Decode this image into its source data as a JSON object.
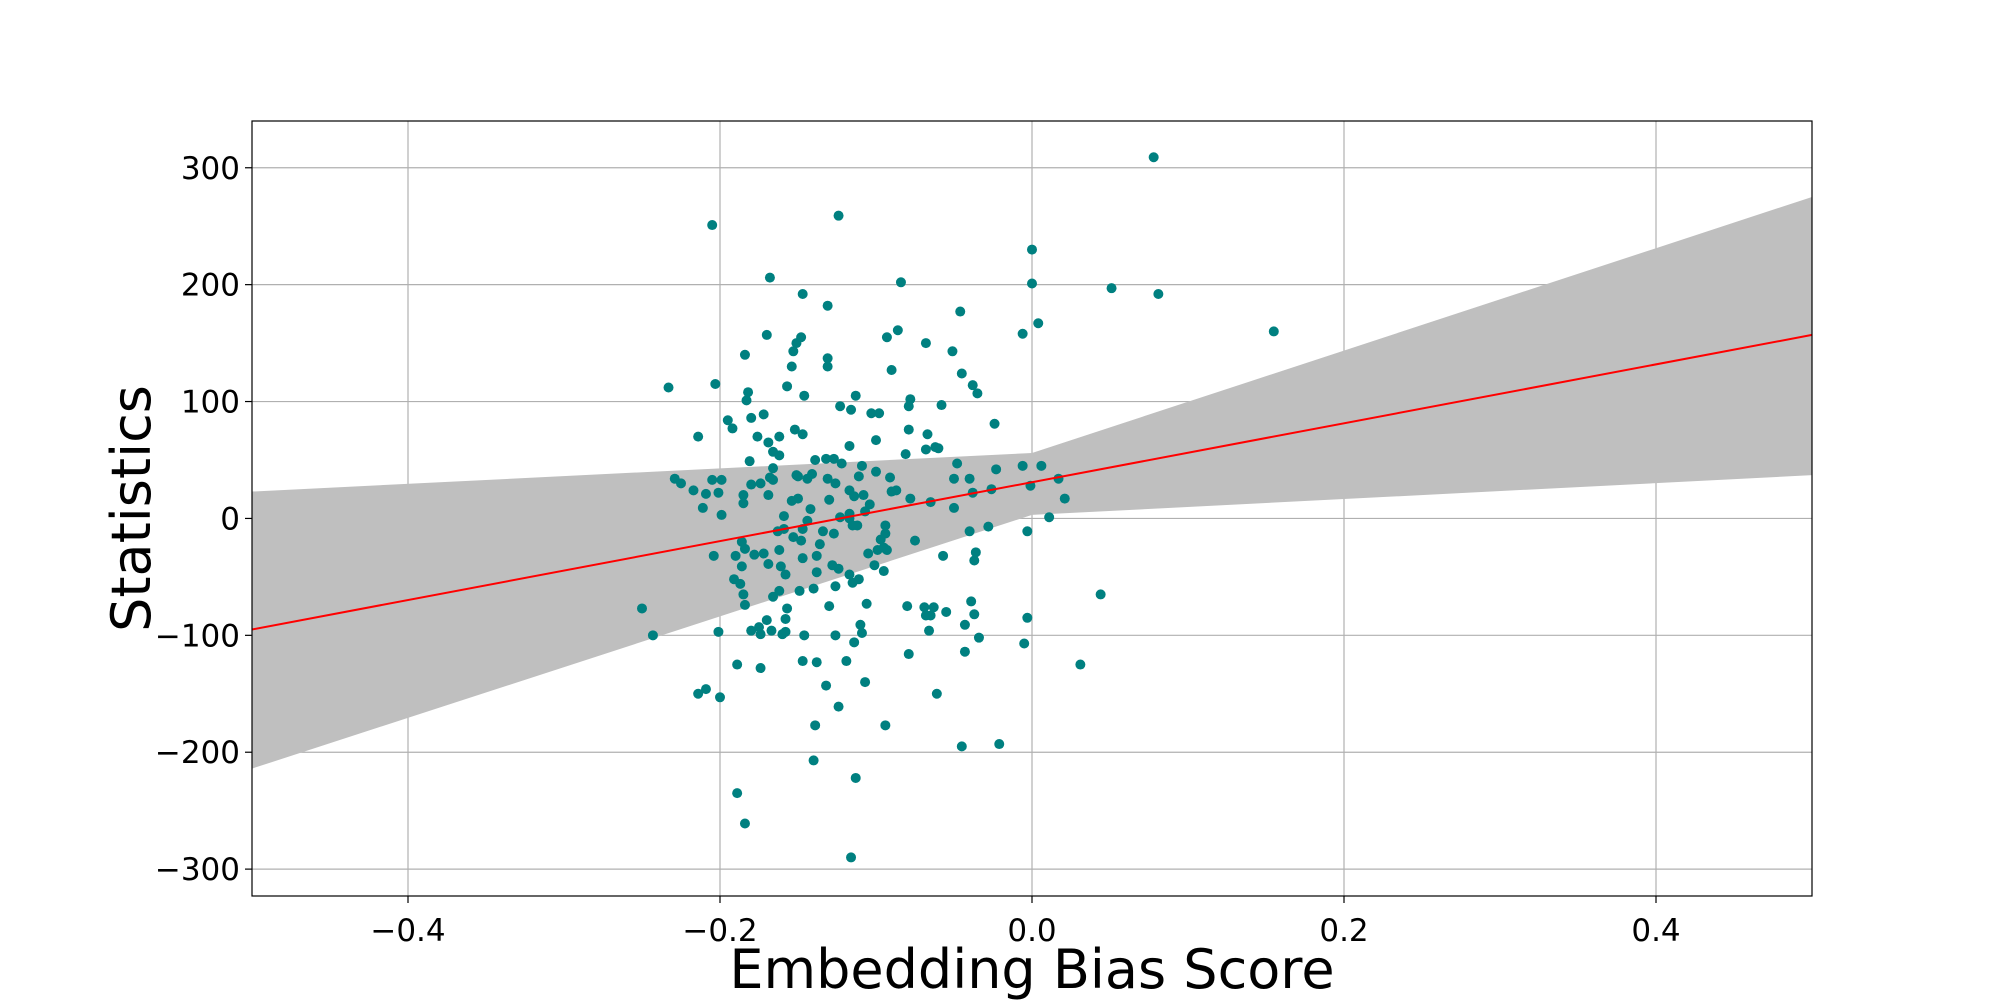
{
  "chart_data": {
    "type": "scatter",
    "title": "",
    "xlabel": "Embedding Bias Score",
    "ylabel": "Statistics",
    "xlim": [
      -0.5,
      0.5
    ],
    "ylim": [
      -323,
      340
    ],
    "grid": true,
    "xticks": [
      -0.4,
      -0.2,
      0.0,
      0.2,
      0.4
    ],
    "xtick_labels": [
      "−0.4",
      "−0.2",
      "0.0",
      "0.2",
      "0.4"
    ],
    "yticks": [
      -300,
      -200,
      -100,
      0,
      100,
      200,
      300
    ],
    "ytick_labels": [
      "−300",
      "−200",
      "−100",
      "0",
      "100",
      "200",
      "300"
    ],
    "colors": {
      "points": "#008080",
      "regression": "#ff0000",
      "confidence_band": "#bfbfbf",
      "grid": "#b0b0b0"
    },
    "regression": {
      "x": [
        -0.5,
        0.5
      ],
      "y": [
        -95,
        157
      ]
    },
    "confidence_band": {
      "x": [
        -0.5,
        0.0,
        0.5
      ],
      "upper": [
        23,
        56,
        275
      ],
      "lower": [
        -214,
        3,
        37
      ]
    },
    "points": [
      [
        0.078,
        309
      ],
      [
        -0.124,
        259
      ],
      [
        -0.205,
        251
      ],
      [
        0.0,
        230
      ],
      [
        -0.168,
        206
      ],
      [
        0.051,
        197
      ],
      [
        -0.084,
        202
      ],
      [
        0.081,
        192
      ],
      [
        -0.147,
        192
      ],
      [
        0.0,
        201
      ],
      [
        -0.131,
        182
      ],
      [
        -0.046,
        177
      ],
      [
        0.004,
        167
      ],
      [
        0.155,
        160
      ],
      [
        -0.006,
        158
      ],
      [
        -0.086,
        161
      ],
      [
        -0.093,
        155
      ],
      [
        -0.068,
        150
      ],
      [
        -0.17,
        157
      ],
      [
        -0.148,
        155
      ],
      [
        -0.151,
        150
      ],
      [
        -0.153,
        143
      ],
      [
        -0.051,
        143
      ],
      [
        -0.184,
        140
      ],
      [
        -0.131,
        137
      ],
      [
        -0.09,
        127
      ],
      [
        -0.131,
        130
      ],
      [
        -0.154,
        130
      ],
      [
        -0.045,
        124
      ],
      [
        -0.038,
        114
      ],
      [
        -0.203,
        115
      ],
      [
        -0.233,
        112
      ],
      [
        -0.157,
        113
      ],
      [
        -0.035,
        107
      ],
      [
        -0.182,
        108
      ],
      [
        -0.146,
        105
      ],
      [
        -0.113,
        105
      ],
      [
        -0.183,
        101
      ],
      [
        -0.078,
        102
      ],
      [
        -0.058,
        97
      ],
      [
        -0.079,
        96
      ],
      [
        -0.123,
        96
      ],
      [
        -0.116,
        93
      ],
      [
        -0.098,
        90
      ],
      [
        -0.103,
        90
      ],
      [
        -0.172,
        89
      ],
      [
        -0.18,
        86
      ],
      [
        -0.195,
        84
      ],
      [
        -0.024,
        81
      ],
      [
        -0.192,
        77
      ],
      [
        -0.152,
        76
      ],
      [
        -0.079,
        76
      ],
      [
        -0.147,
        72
      ],
      [
        -0.067,
        72
      ],
      [
        -0.176,
        70
      ],
      [
        -0.214,
        70
      ],
      [
        -0.162,
        70
      ],
      [
        -0.1,
        67
      ],
      [
        -0.169,
        65
      ],
      [
        -0.06,
        60
      ],
      [
        -0.068,
        59
      ],
      [
        -0.166,
        57
      ],
      [
        -0.117,
        62
      ],
      [
        -0.162,
        54
      ],
      [
        -0.081,
        55
      ],
      [
        -0.132,
        51
      ],
      [
        -0.127,
        51
      ],
      [
        -0.122,
        47
      ],
      [
        -0.139,
        50
      ],
      [
        -0.048,
        47
      ],
      [
        -0.181,
        49
      ],
      [
        -0.006,
        45
      ],
      [
        0.006,
        45
      ],
      [
        -0.109,
        45
      ],
      [
        -0.166,
        43
      ],
      [
        -0.1,
        40
      ],
      [
        -0.151,
        37
      ],
      [
        -0.15,
        36
      ],
      [
        -0.111,
        36
      ],
      [
        -0.023,
        42
      ],
      [
        -0.168,
        35
      ],
      [
        -0.131,
        34
      ],
      [
        -0.144,
        34
      ],
      [
        -0.229,
        34
      ],
      [
        -0.091,
        35
      ],
      [
        -0.04,
        34
      ],
      [
        -0.05,
        34
      ],
      [
        -0.166,
        33
      ],
      [
        -0.199,
        33
      ],
      [
        -0.205,
        33
      ],
      [
        0.017,
        34
      ],
      [
        -0.225,
        30
      ],
      [
        -0.18,
        29
      ],
      [
        -0.126,
        30
      ],
      [
        -0.174,
        30
      ],
      [
        -0.026,
        25
      ],
      [
        -0.001,
        28
      ],
      [
        -0.087,
        24
      ],
      [
        -0.217,
        24
      ],
      [
        -0.117,
        24
      ],
      [
        -0.201,
        22
      ],
      [
        -0.209,
        21
      ],
      [
        -0.185,
        20
      ],
      [
        -0.169,
        20
      ],
      [
        -0.108,
        20
      ],
      [
        -0.114,
        19
      ],
      [
        -0.15,
        17
      ],
      [
        -0.13,
        16
      ],
      [
        -0.154,
        15
      ],
      [
        -0.078,
        17
      ],
      [
        -0.038,
        22
      ],
      [
        -0.065,
        14
      ],
      [
        0.021,
        17
      ],
      [
        -0.185,
        13
      ],
      [
        -0.104,
        12
      ],
      [
        -0.211,
        9
      ],
      [
        -0.142,
        8
      ],
      [
        -0.05,
        9
      ],
      [
        -0.107,
        6
      ],
      [
        -0.117,
        4
      ],
      [
        -0.199,
        3
      ],
      [
        -0.159,
        2
      ],
      [
        -0.123,
        1
      ],
      [
        -0.117,
        0
      ],
      [
        0.011,
        1
      ],
      [
        -0.144,
        -2
      ],
      [
        -0.112,
        -6
      ],
      [
        -0.094,
        -6
      ],
      [
        -0.115,
        -6
      ],
      [
        -0.159,
        -9
      ],
      [
        -0.147,
        -9
      ],
      [
        -0.028,
        -7
      ],
      [
        -0.134,
        -11
      ],
      [
        -0.04,
        -11
      ],
      [
        -0.127,
        -13
      ],
      [
        -0.003,
        -11
      ],
      [
        -0.094,
        -13
      ],
      [
        -0.153,
        -16
      ],
      [
        -0.148,
        -19
      ],
      [
        -0.097,
        -18
      ],
      [
        -0.075,
        -19
      ],
      [
        -0.136,
        -22
      ],
      [
        -0.186,
        -20
      ],
      [
        -0.184,
        -26
      ],
      [
        -0.095,
        -25
      ],
      [
        -0.099,
        -27
      ],
      [
        -0.162,
        -27
      ],
      [
        -0.036,
        -29
      ],
      [
        -0.093,
        -27
      ],
      [
        -0.105,
        -30
      ],
      [
        -0.172,
        -30
      ],
      [
        -0.178,
        -31
      ],
      [
        -0.138,
        -32
      ],
      [
        -0.19,
        -32
      ],
      [
        -0.057,
        -32
      ],
      [
        -0.204,
        -32
      ],
      [
        -0.147,
        -34
      ],
      [
        -0.037,
        -36
      ],
      [
        -0.101,
        -40
      ],
      [
        -0.186,
        -41
      ],
      [
        -0.169,
        -39
      ],
      [
        -0.161,
        -41
      ],
      [
        -0.128,
        -40
      ],
      [
        -0.124,
        -43
      ],
      [
        -0.095,
        -45
      ],
      [
        -0.138,
        -46
      ],
      [
        -0.117,
        -48
      ],
      [
        -0.158,
        -48
      ],
      [
        -0.191,
        -52
      ],
      [
        -0.111,
        -52
      ],
      [
        -0.115,
        -55
      ],
      [
        -0.187,
        -56
      ],
      [
        -0.126,
        -58
      ],
      [
        -0.14,
        -60
      ],
      [
        -0.149,
        -62
      ],
      [
        -0.162,
        -62
      ],
      [
        -0.185,
        -65
      ],
      [
        -0.166,
        -67
      ],
      [
        0.044,
        -65
      ],
      [
        -0.039,
        -71
      ],
      [
        -0.106,
        -73
      ],
      [
        -0.08,
        -75
      ],
      [
        -0.184,
        -74
      ],
      [
        -0.069,
        -76
      ],
      [
        -0.25,
        -77
      ],
      [
        -0.157,
        -77
      ],
      [
        -0.13,
        -75
      ],
      [
        -0.063,
        -76
      ],
      [
        -0.055,
        -80
      ],
      [
        -0.037,
        -82
      ],
      [
        -0.068,
        -83
      ],
      [
        -0.065,
        -83
      ],
      [
        -0.003,
        -85
      ],
      [
        -0.158,
        -86
      ],
      [
        -0.17,
        -87
      ],
      [
        -0.11,
        -91
      ],
      [
        -0.043,
        -91
      ],
      [
        -0.175,
        -93
      ],
      [
        -0.18,
        -96
      ],
      [
        -0.066,
        -96
      ],
      [
        -0.167,
        -96
      ],
      [
        -0.201,
        -97
      ],
      [
        -0.158,
        -97
      ],
      [
        -0.109,
        -98
      ],
      [
        -0.126,
        -100
      ],
      [
        -0.146,
        -100
      ],
      [
        -0.16,
        -99
      ],
      [
        -0.174,
        -99
      ],
      [
        -0.243,
        -100
      ],
      [
        -0.034,
        -102
      ],
      [
        -0.114,
        -106
      ],
      [
        -0.005,
        -107
      ],
      [
        -0.043,
        -114
      ],
      [
        -0.079,
        -116
      ],
      [
        -0.147,
        -122
      ],
      [
        -0.119,
        -122
      ],
      [
        -0.138,
        -123
      ],
      [
        -0.189,
        -125
      ],
      [
        0.031,
        -125
      ],
      [
        -0.174,
        -128
      ],
      [
        -0.107,
        -140
      ],
      [
        -0.132,
        -143
      ],
      [
        -0.061,
        -150
      ],
      [
        -0.214,
        -150
      ],
      [
        -0.2,
        -153
      ],
      [
        -0.124,
        -161
      ],
      [
        -0.094,
        -177
      ],
      [
        -0.139,
        -177
      ],
      [
        -0.045,
        -195
      ],
      [
        -0.021,
        -193
      ],
      [
        -0.14,
        -207
      ],
      [
        -0.113,
        -222
      ],
      [
        -0.189,
        -235
      ],
      [
        -0.184,
        -261
      ],
      [
        -0.116,
        -290
      ],
      [
        -0.209,
        -146
      ],
      [
        -0.163,
        -11
      ],
      [
        -0.141,
        38
      ],
      [
        -0.09,
        23
      ],
      [
        -0.062,
        61
      ]
    ]
  }
}
